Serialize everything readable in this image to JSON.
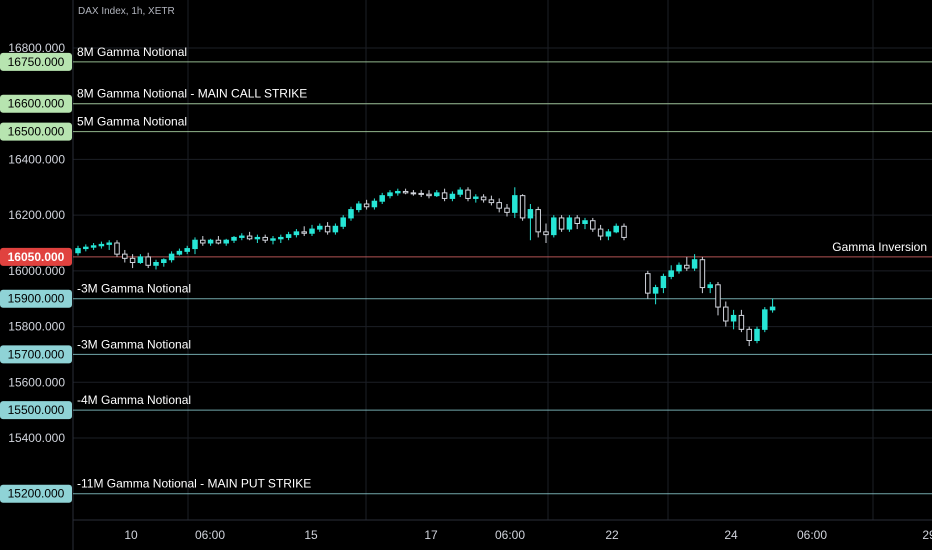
{
  "header": {
    "symbol_line": "DAX Index, 1h, XETR"
  },
  "colors": {
    "background": "#000000",
    "up_candle": "#26e6d6",
    "down_candle_border": "#d1d4dc",
    "grid": "#1c1f26",
    "axis_text": "#d1d4dc",
    "call_level": "#b7e4b0",
    "put_level": "#8fd3d6",
    "inversion_level": "#e06a6a"
  },
  "chart_data": {
    "type": "candlestick",
    "title": "",
    "xlabel": "",
    "ylabel": "",
    "ylim": [
      15020,
      16870
    ],
    "y_ticks": [
      "16800.000",
      "16600.000",
      "16400.000",
      "16200.000",
      "16000.000",
      "15800.000",
      "15600.000",
      "15400.000"
    ],
    "x_ticks": [
      "10",
      "06:00",
      "15",
      "17",
      "06:00",
      "22",
      "24",
      "06:00",
      "29"
    ],
    "levels": [
      {
        "price": 16750,
        "price_label": "16750.000",
        "text": "8M Gamma Notional",
        "kind": "call"
      },
      {
        "price": 16600,
        "price_label": "16600.000",
        "text": "8M Gamma Notional - MAIN CALL STRIKE",
        "kind": "call"
      },
      {
        "price": 16500,
        "price_label": "16500.000",
        "text": "5M Gamma Notional",
        "kind": "call"
      },
      {
        "price": 16050,
        "price_label": "16050.000",
        "text": "Gamma Inversion",
        "kind": "inversion"
      },
      {
        "price": 15900,
        "price_label": "15900.000",
        "text": "-3M Gamma Notional",
        "kind": "put"
      },
      {
        "price": 15700,
        "price_label": "15700.000",
        "text": "-3M Gamma Notional",
        "kind": "put"
      },
      {
        "price": 15500,
        "price_label": "15500.000",
        "text": "-4M Gamma Notional",
        "kind": "put"
      },
      {
        "price": 15200,
        "price_label": "15200.000",
        "text": "-11M Gamma Notional - MAIN PUT STRIKE",
        "kind": "put"
      }
    ],
    "candles": [
      {
        "o": 16065,
        "h": 16090,
        "l": 16055,
        "c": 16080
      },
      {
        "o": 16080,
        "h": 16095,
        "l": 16070,
        "c": 16085
      },
      {
        "o": 16085,
        "h": 16100,
        "l": 16075,
        "c": 16090
      },
      {
        "o": 16090,
        "h": 16105,
        "l": 16080,
        "c": 16095
      },
      {
        "o": 16095,
        "h": 16110,
        "l": 16075,
        "c": 16100
      },
      {
        "o": 16100,
        "h": 16110,
        "l": 16050,
        "c": 16060
      },
      {
        "o": 16060,
        "h": 16075,
        "l": 16030,
        "c": 16045
      },
      {
        "o": 16045,
        "h": 16060,
        "l": 16010,
        "c": 16030
      },
      {
        "o": 16030,
        "h": 16060,
        "l": 16025,
        "c": 16050
      },
      {
        "o": 16050,
        "h": 16065,
        "l": 16010,
        "c": 16020
      },
      {
        "o": 16020,
        "h": 16040,
        "l": 16005,
        "c": 16030
      },
      {
        "o": 16030,
        "h": 16045,
        "l": 16015,
        "c": 16040
      },
      {
        "o": 16040,
        "h": 16070,
        "l": 16030,
        "c": 16060
      },
      {
        "o": 16060,
        "h": 16080,
        "l": 16055,
        "c": 16070
      },
      {
        "o": 16070,
        "h": 16090,
        "l": 16060,
        "c": 16080
      },
      {
        "o": 16080,
        "h": 16120,
        "l": 16060,
        "c": 16110
      },
      {
        "o": 16110,
        "h": 16125,
        "l": 16090,
        "c": 16100
      },
      {
        "o": 16100,
        "h": 16115,
        "l": 16090,
        "c": 16110
      },
      {
        "o": 16110,
        "h": 16125,
        "l": 16095,
        "c": 16100
      },
      {
        "o": 16100,
        "h": 16115,
        "l": 16090,
        "c": 16110
      },
      {
        "o": 16110,
        "h": 16125,
        "l": 16100,
        "c": 16120
      },
      {
        "o": 16120,
        "h": 16135,
        "l": 16110,
        "c": 16125
      },
      {
        "o": 16125,
        "h": 16140,
        "l": 16110,
        "c": 16115
      },
      {
        "o": 16115,
        "h": 16130,
        "l": 16100,
        "c": 16120
      },
      {
        "o": 16120,
        "h": 16130,
        "l": 16100,
        "c": 16110
      },
      {
        "o": 16110,
        "h": 16125,
        "l": 16095,
        "c": 16115
      },
      {
        "o": 16115,
        "h": 16130,
        "l": 16100,
        "c": 16120
      },
      {
        "o": 16120,
        "h": 16140,
        "l": 16110,
        "c": 16130
      },
      {
        "o": 16130,
        "h": 16150,
        "l": 16120,
        "c": 16140
      },
      {
        "o": 16140,
        "h": 16160,
        "l": 16125,
        "c": 16135
      },
      {
        "o": 16135,
        "h": 16165,
        "l": 16125,
        "c": 16150
      },
      {
        "o": 16150,
        "h": 16170,
        "l": 16140,
        "c": 16160
      },
      {
        "o": 16160,
        "h": 16175,
        "l": 16130,
        "c": 16140
      },
      {
        "o": 16140,
        "h": 16170,
        "l": 16130,
        "c": 16160
      },
      {
        "o": 16160,
        "h": 16200,
        "l": 16150,
        "c": 16190
      },
      {
        "o": 16190,
        "h": 16230,
        "l": 16180,
        "c": 16220
      },
      {
        "o": 16220,
        "h": 16250,
        "l": 16210,
        "c": 16240
      },
      {
        "o": 16240,
        "h": 16255,
        "l": 16220,
        "c": 16230
      },
      {
        "o": 16230,
        "h": 16260,
        "l": 16220,
        "c": 16250
      },
      {
        "o": 16250,
        "h": 16280,
        "l": 16240,
        "c": 16270
      },
      {
        "o": 16270,
        "h": 16290,
        "l": 16260,
        "c": 16280
      },
      {
        "o": 16280,
        "h": 16295,
        "l": 16270,
        "c": 16285
      },
      {
        "o": 16285,
        "h": 16295,
        "l": 16275,
        "c": 16280
      },
      {
        "o": 16280,
        "h": 16290,
        "l": 16270,
        "c": 16278
      },
      {
        "o": 16278,
        "h": 16290,
        "l": 16265,
        "c": 16275
      },
      {
        "o": 16275,
        "h": 16290,
        "l": 16260,
        "c": 16270
      },
      {
        "o": 16270,
        "h": 16290,
        "l": 16265,
        "c": 16280
      },
      {
        "o": 16280,
        "h": 16295,
        "l": 16250,
        "c": 16260
      },
      {
        "o": 16260,
        "h": 16285,
        "l": 16250,
        "c": 16275
      },
      {
        "o": 16275,
        "h": 16300,
        "l": 16265,
        "c": 16290
      },
      {
        "o": 16290,
        "h": 16300,
        "l": 16250,
        "c": 16260
      },
      {
        "o": 16260,
        "h": 16275,
        "l": 16245,
        "c": 16265
      },
      {
        "o": 16265,
        "h": 16275,
        "l": 16245,
        "c": 16255
      },
      {
        "o": 16255,
        "h": 16270,
        "l": 16235,
        "c": 16245
      },
      {
        "o": 16245,
        "h": 16260,
        "l": 16210,
        "c": 16225
      },
      {
        "o": 16225,
        "h": 16240,
        "l": 16195,
        "c": 16210
      },
      {
        "o": 16210,
        "h": 16300,
        "l": 16190,
        "c": 16270
      },
      {
        "o": 16270,
        "h": 16275,
        "l": 16180,
        "c": 16190
      },
      {
        "o": 16190,
        "h": 16240,
        "l": 16110,
        "c": 16220
      },
      {
        "o": 16220,
        "h": 16230,
        "l": 16120,
        "c": 16140
      },
      {
        "o": 16140,
        "h": 16170,
        "l": 16100,
        "c": 16130
      },
      {
        "o": 16130,
        "h": 16200,
        "l": 16120,
        "c": 16190
      },
      {
        "o": 16190,
        "h": 16200,
        "l": 16140,
        "c": 16150
      },
      {
        "o": 16150,
        "h": 16200,
        "l": 16140,
        "c": 16190
      },
      {
        "o": 16190,
        "h": 16200,
        "l": 16150,
        "c": 16170
      },
      {
        "o": 16170,
        "h": 16190,
        "l": 16150,
        "c": 16180
      },
      {
        "o": 16180,
        "h": 16190,
        "l": 16140,
        "c": 16150
      },
      {
        "o": 16150,
        "h": 16165,
        "l": 16110,
        "c": 16125
      },
      {
        "o": 16125,
        "h": 16150,
        "l": 16110,
        "c": 16140
      },
      {
        "o": 16140,
        "h": 16170,
        "l": 16135,
        "c": 16160
      },
      {
        "o": 16160,
        "h": 16170,
        "l": 16110,
        "c": 16120
      },
      {
        "o": 15990,
        "h": 16000,
        "l": 15900,
        "c": 15920
      },
      {
        "o": 15920,
        "h": 15950,
        "l": 15880,
        "c": 15940
      },
      {
        "o": 15940,
        "h": 15990,
        "l": 15920,
        "c": 15980
      },
      {
        "o": 15980,
        "h": 16020,
        "l": 15970,
        "c": 16000
      },
      {
        "o": 16000,
        "h": 16030,
        "l": 15990,
        "c": 16020
      },
      {
        "o": 16020,
        "h": 16050,
        "l": 16000,
        "c": 16010
      },
      {
        "o": 16010,
        "h": 16060,
        "l": 16000,
        "c": 16040
      },
      {
        "o": 16040,
        "h": 16050,
        "l": 15920,
        "c": 15940
      },
      {
        "o": 15940,
        "h": 15960,
        "l": 15920,
        "c": 15950
      },
      {
        "o": 15950,
        "h": 15960,
        "l": 15840,
        "c": 15870
      },
      {
        "o": 15870,
        "h": 15890,
        "l": 15800,
        "c": 15820
      },
      {
        "o": 15820,
        "h": 15860,
        "l": 15790,
        "c": 15840
      },
      {
        "o": 15840,
        "h": 15860,
        "l": 15780,
        "c": 15790
      },
      {
        "o": 15790,
        "h": 15800,
        "l": 15730,
        "c": 15750
      },
      {
        "o": 15750,
        "h": 15800,
        "l": 15740,
        "c": 15790
      },
      {
        "o": 15790,
        "h": 15870,
        "l": 15780,
        "c": 15860
      },
      {
        "o": 15860,
        "h": 15900,
        "l": 15850,
        "c": 15870
      }
    ]
  }
}
